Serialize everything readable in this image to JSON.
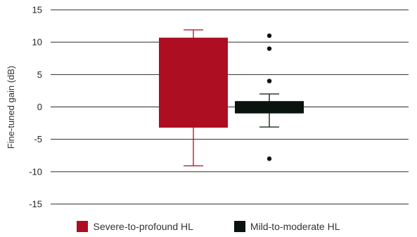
{
  "chart_data": {
    "type": "boxplot",
    "title": "",
    "xlabel": "",
    "ylabel": "Fine-tuned gain (dB)",
    "ylim": [
      -15,
      15
    ],
    "yticks": [
      15,
      10,
      5,
      0,
      -5,
      -10,
      -15
    ],
    "ytick_labels": [
      "15",
      "10",
      "5",
      "0",
      "-5",
      "-10",
      "-15"
    ],
    "grid": "horizontal",
    "legend_position": "bottom",
    "series": [
      {
        "name": "Severe-to-profound HL",
        "color": "#ad0e22",
        "q1": -3.2,
        "q3": 10.7,
        "median": null,
        "whisker_low": -9.1,
        "whisker_high": 11.9,
        "outliers": []
      },
      {
        "name": "Mild-to-moderate HL",
        "color": "#0a130c",
        "q1": -1.0,
        "q3": 0.9,
        "median": null,
        "whisker_low": -3.1,
        "whisker_high": 2.0,
        "outliers": [
          11,
          9,
          4,
          -8
        ]
      }
    ]
  }
}
